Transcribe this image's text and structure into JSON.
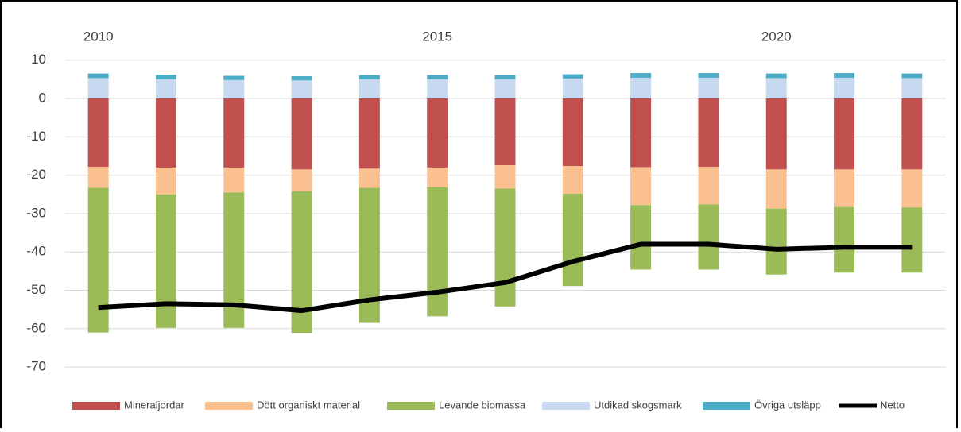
{
  "chart_data": {
    "type": "bar",
    "categories": [
      "2010",
      null,
      null,
      null,
      null,
      "2015",
      null,
      null,
      null,
      null,
      "2020",
      null,
      null
    ],
    "series": [
      {
        "name": "Mineraljordar",
        "color": "#c0504d",
        "values": [
          -17.8,
          -18,
          -18,
          -18.5,
          -18.3,
          -18,
          -17.4,
          -17.6,
          -17.9,
          -17.8,
          -18.5,
          -18.5,
          -18.5
        ]
      },
      {
        "name": "Dött organiskt material",
        "color": "#fac090",
        "values": [
          -5.5,
          -7,
          -6.5,
          -5.7,
          -5,
          -5.1,
          -6.1,
          -7.2,
          -9.9,
          -9.8,
          -10.2,
          -9.8,
          -9.9
        ]
      },
      {
        "name": "Levande biomassa",
        "color": "#9bbb59",
        "values": [
          -37.7,
          -34.8,
          -35.3,
          -36.9,
          -35.2,
          -33.7,
          -30.7,
          -24.1,
          -16.8,
          -17,
          -17.2,
          -17.1,
          -17
        ]
      },
      {
        "name": "Utdikad skogsmark",
        "color": "#c6d9f1",
        "values": [
          5.3,
          5.0,
          4.8,
          4.7,
          5.0,
          5.0,
          5.0,
          5.2,
          5.4,
          5.4,
          5.3,
          5.4,
          5.3
        ]
      },
      {
        "name": "Övriga utsläpp",
        "color": "#4bacc6",
        "values": [
          1.2,
          1.2,
          1.1,
          1.1,
          1.1,
          1.1,
          1.1,
          1.1,
          1.2,
          1.2,
          1.2,
          1.2,
          1.2
        ]
      },
      {
        "name": "Netto",
        "color": "#000000",
        "type": "line",
        "values": [
          -54.5,
          -53.5,
          -53.8,
          -55.3,
          -52.5,
          -50.5,
          -48,
          -42.5,
          -38,
          -38,
          -39.3,
          -38.8,
          -38.8
        ]
      }
    ],
    "ylim": [
      -80,
      10
    ],
    "yticks": [
      10,
      0,
      -10,
      -20,
      -30,
      -40,
      -50,
      -60,
      -70
    ],
    "grid": true,
    "stacked": true,
    "legend": "bottom"
  }
}
